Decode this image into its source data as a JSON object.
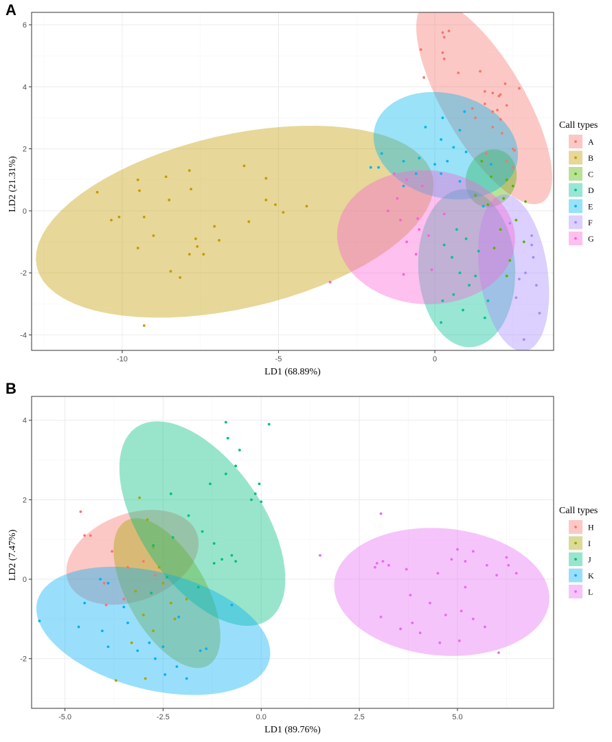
{
  "chart_data": [
    {
      "type": "scatter",
      "panel": "A",
      "title": "",
      "xlabel": "LD1 (68.89%)",
      "ylabel": "LD2 (21.31%)",
      "xlim": [
        -12.9,
        3.8
      ],
      "ylim": [
        -4.5,
        6.4
      ],
      "xticks": [
        -10,
        -5,
        0
      ],
      "yticks": [
        -4,
        -2,
        0,
        2,
        4,
        6
      ],
      "grid": true,
      "legend_title": "Call types",
      "legend_position": "right",
      "series": [
        {
          "name": "A",
          "color": "#F8766D",
          "ellipse": {
            "cx": 1.58,
            "cy": 3.5,
            "rx": 3.72,
            "ry": 1.3,
            "angle": -60
          },
          "points": [
            [
              0.25,
              5.75
            ],
            [
              0.45,
              5.8
            ],
            [
              0.3,
              5.6
            ],
            [
              -0.45,
              5.2
            ],
            [
              0.25,
              5.1
            ],
            [
              0.3,
              4.9
            ],
            [
              0.75,
              4.45
            ],
            [
              1.45,
              4.5
            ],
            [
              -0.35,
              4.3
            ],
            [
              2.25,
              4.1
            ],
            [
              2.7,
              3.95
            ],
            [
              1.6,
              3.85
            ],
            [
              1.85,
              3.8
            ],
            [
              2.05,
              3.7
            ],
            [
              2.1,
              3.75
            ],
            [
              1.6,
              3.45
            ],
            [
              2.3,
              3.4
            ],
            [
              1.2,
              3.3
            ],
            [
              1.85,
              3.2
            ],
            [
              2.0,
              3.25
            ],
            [
              1.3,
              3.0
            ],
            [
              2.1,
              2.95
            ],
            [
              1.85,
              2.7
            ],
            [
              2.15,
              2.5
            ],
            [
              2.5,
              2.0
            ],
            [
              2.55,
              1.95
            ],
            [
              1.65,
              1.85
            ],
            [
              2.3,
              1.6
            ],
            [
              2.5,
              1.4
            ]
          ]
        },
        {
          "name": "B",
          "color": "#C49A00",
          "ellipse": {
            "cx": -6.4,
            "cy": -0.35,
            "rx": 6.5,
            "ry": 2.8,
            "angle": 13
          },
          "points": [
            [
              -10.8,
              0.6
            ],
            [
              -10.35,
              -0.3
            ],
            [
              -10.1,
              -0.2
            ],
            [
              -9.5,
              1.0
            ],
            [
              -9.45,
              0.65
            ],
            [
              -9.3,
              -0.2
            ],
            [
              -9.0,
              -0.8
            ],
            [
              -8.6,
              1.1
            ],
            [
              -8.5,
              0.35
            ],
            [
              -8.45,
              -1.95
            ],
            [
              -8.15,
              -2.15
            ],
            [
              -7.85,
              1.3
            ],
            [
              -7.8,
              0.7
            ],
            [
              -7.65,
              -0.9
            ],
            [
              -7.6,
              -1.15
            ],
            [
              -7.4,
              -1.4
            ],
            [
              -7.05,
              -0.5
            ],
            [
              -6.9,
              -0.95
            ],
            [
              -6.1,
              1.45
            ],
            [
              -5.95,
              -0.35
            ],
            [
              -5.4,
              1.05
            ],
            [
              -5.4,
              0.35
            ],
            [
              -5.1,
              0.2
            ],
            [
              -4.85,
              -0.05
            ],
            [
              -4.1,
              0.15
            ],
            [
              -9.5,
              -1.2
            ],
            [
              -7.85,
              -1.4
            ],
            [
              -9.3,
              -3.7
            ]
          ]
        },
        {
          "name": "C",
          "color": "#53B400",
          "ellipse": {
            "cx": 1.8,
            "cy": 1.05,
            "rx": 0.8,
            "ry": 0.95,
            "angle": -20
          },
          "points": [
            [
              1.5,
              1.6
            ],
            [
              1.8,
              1.1
            ],
            [
              2.3,
              1.0
            ],
            [
              2.5,
              0.8
            ],
            [
              2.9,
              0.3
            ],
            [
              1.3,
              0.5
            ],
            [
              2.2,
              0.4
            ],
            [
              1.7,
              0.2
            ],
            [
              2.6,
              -0.3
            ],
            [
              2.1,
              -0.6
            ],
            [
              1.9,
              -1.2
            ],
            [
              2.4,
              -1.6
            ],
            [
              2.85,
              -1.0
            ],
            [
              2.3,
              -2.1
            ]
          ]
        },
        {
          "name": "D",
          "color": "#00C094",
          "ellipse": {
            "cx": 1.02,
            "cy": -1.85,
            "rx": 1.55,
            "ry": 2.55,
            "angle": 3
          },
          "points": [
            [
              0.55,
              -1.5
            ],
            [
              0.8,
              -2.0
            ],
            [
              1.1,
              -2.4
            ],
            [
              1.4,
              -1.3
            ],
            [
              0.3,
              -1.1
            ],
            [
              1.7,
              -2.9
            ],
            [
              0.9,
              -3.2
            ],
            [
              0.6,
              -2.7
            ],
            [
              0.25,
              -2.9
            ],
            [
              1.6,
              -3.45
            ],
            [
              0.2,
              -3.6
            ],
            [
              1.3,
              -2.1
            ],
            [
              0.7,
              -0.6
            ],
            [
              1.0,
              -0.9
            ]
          ]
        },
        {
          "name": "E",
          "color": "#00B6EB",
          "ellipse": {
            "cx": 0.35,
            "cy": 2.1,
            "rx": 2.35,
            "ry": 1.68,
            "angle": -15
          },
          "points": [
            [
              -1.7,
              1.85
            ],
            [
              -1.8,
              1.4
            ],
            [
              -1.0,
              1.6
            ],
            [
              -0.5,
              1.7
            ],
            [
              -0.3,
              2.7
            ],
            [
              0.2,
              2.3
            ],
            [
              0.6,
              2.05
            ],
            [
              0.4,
              1.6
            ],
            [
              0.0,
              1.5
            ],
            [
              -0.6,
              1.2
            ],
            [
              0.2,
              1.2
            ],
            [
              0.8,
              2.6
            ],
            [
              1.0,
              1.9
            ],
            [
              -1.0,
              0.8
            ],
            [
              0.8,
              0.95
            ],
            [
              -2.05,
              1.4
            ],
            [
              1.8,
              1.5
            ],
            [
              0.95,
              3.2
            ],
            [
              0.25,
              3.0
            ],
            [
              1.55,
              0.15
            ]
          ]
        },
        {
          "name": "F",
          "color": "#A58AFF",
          "ellipse": {
            "cx": 2.52,
            "cy": -2.0,
            "rx": 1.09,
            "ry": 2.55,
            "angle": 8
          },
          "points": [
            [
              3.1,
              -0.8
            ],
            [
              3.15,
              -1.5
            ],
            [
              2.9,
              -2.0
            ],
            [
              3.25,
              -2.4
            ],
            [
              2.6,
              -2.8
            ],
            [
              2.7,
              -2.2
            ],
            [
              3.35,
              -3.3
            ],
            [
              2.85,
              -4.15
            ],
            [
              3.1,
              -1.1
            ],
            [
              2.4,
              -0.4
            ]
          ]
        },
        {
          "name": "G",
          "color": "#FB61D7",
          "ellipse": {
            "cx": -0.28,
            "cy": -0.85,
            "rx": 2.85,
            "ry": 2.16,
            "angle": -3
          },
          "points": [
            [
              -1.3,
              1.2
            ],
            [
              -0.9,
              1.0
            ],
            [
              -0.4,
              0.8
            ],
            [
              -1.2,
              0.4
            ],
            [
              -1.5,
              0.0
            ],
            [
              -1.1,
              -0.3
            ],
            [
              -0.5,
              -0.6
            ],
            [
              -0.2,
              -0.8
            ],
            [
              0.3,
              -0.1
            ],
            [
              -0.9,
              -1.0
            ],
            [
              -0.6,
              -1.4
            ],
            [
              -0.1,
              -1.9
            ],
            [
              -1.0,
              -2.05
            ],
            [
              -0.55,
              -0.25
            ],
            [
              -3.35,
              -2.3
            ]
          ]
        }
      ]
    },
    {
      "type": "scatter",
      "panel": "B",
      "title": "",
      "xlabel": "LD1 (89.76%)",
      "ylabel": "LD2 (7.47%)",
      "xlim": [
        -5.85,
        7.45
      ],
      "ylim": [
        -3.25,
        4.6
      ],
      "xticks": [
        -5.0,
        -2.5,
        0.0,
        2.5,
        5.0
      ],
      "yticks": [
        -2,
        0,
        2,
        4
      ],
      "grid": true,
      "legend_title": "Call types",
      "legend_position": "right",
      "series": [
        {
          "name": "H",
          "color": "#F8766D",
          "ellipse": {
            "cx": -3.28,
            "cy": 0.55,
            "rx": 1.75,
            "ry": 1.1,
            "angle": 20
          },
          "points": [
            [
              -4.6,
              1.7
            ],
            [
              -4.5,
              1.1
            ],
            [
              -4.35,
              1.1
            ],
            [
              -3.8,
              0.7
            ],
            [
              -3.4,
              0.3
            ],
            [
              -3.0,
              0.45
            ],
            [
              -4.0,
              -0.1
            ],
            [
              -3.5,
              -0.5
            ],
            [
              -2.7,
              0.1
            ],
            [
              -3.95,
              -0.65
            ]
          ]
        },
        {
          "name": "I",
          "color": "#A3A500",
          "ellipse": {
            "cx": -2.4,
            "cy": -0.35,
            "rx": 2.1,
            "ry": 1.0,
            "angle": -60
          },
          "points": [
            [
              -3.1,
              2.05
            ],
            [
              -2.9,
              1.5
            ],
            [
              -2.75,
              0.8
            ],
            [
              -2.6,
              0.3
            ],
            [
              -3.2,
              -0.3
            ],
            [
              -2.5,
              -0.1
            ],
            [
              -2.3,
              -0.6
            ],
            [
              -3.0,
              -0.9
            ],
            [
              -2.2,
              -1.0
            ],
            [
              -2.75,
              -1.3
            ],
            [
              -3.3,
              -1.6
            ],
            [
              -3.7,
              -2.55
            ],
            [
              -2.95,
              -2.5
            ],
            [
              -1.9,
              -0.5
            ]
          ]
        },
        {
          "name": "J",
          "color": "#00BF7D",
          "ellipse": {
            "cx": -1.5,
            "cy": 1.4,
            "rx": 2.95,
            "ry": 1.55,
            "angle": -55
          },
          "points": [
            [
              -0.9,
              3.95
            ],
            [
              0.2,
              3.9
            ],
            [
              -0.85,
              3.55
            ],
            [
              -0.55,
              3.25
            ],
            [
              -0.65,
              2.85
            ],
            [
              -0.9,
              2.65
            ],
            [
              -1.3,
              2.4
            ],
            [
              -0.05,
              2.4
            ],
            [
              -0.15,
              2.15
            ],
            [
              -0.25,
              2.0
            ],
            [
              0.0,
              1.95
            ],
            [
              -2.3,
              2.15
            ],
            [
              -1.85,
              1.6
            ],
            [
              -1.5,
              1.2
            ],
            [
              -2.25,
              1.05
            ],
            [
              -2.75,
              0.85
            ],
            [
              -1.2,
              0.9
            ],
            [
              -0.75,
              0.6
            ],
            [
              -1.2,
              0.4
            ],
            [
              -1.0,
              0.5
            ],
            [
              -0.65,
              0.45
            ],
            [
              -2.4,
              0.05
            ],
            [
              -1.6,
              -0.2
            ],
            [
              -2.8,
              -0.35
            ]
          ]
        },
        {
          "name": "K",
          "color": "#00B0F6",
          "ellipse": {
            "cx": -2.75,
            "cy": -1.3,
            "rx": 3.05,
            "ry": 1.48,
            "angle": -14
          },
          "points": [
            [
              -5.65,
              -1.05
            ],
            [
              -4.65,
              -1.2
            ],
            [
              -4.5,
              -0.6
            ],
            [
              -4.1,
              0.0
            ],
            [
              -4.05,
              -1.3
            ],
            [
              -3.9,
              -1.7
            ],
            [
              -3.5,
              -0.7
            ],
            [
              -3.4,
              -1.1
            ],
            [
              -3.15,
              -1.8
            ],
            [
              -2.85,
              -1.6
            ],
            [
              -2.5,
              -1.7
            ],
            [
              -2.45,
              -2.4
            ],
            [
              -2.15,
              -2.2
            ],
            [
              -1.9,
              -2.5
            ],
            [
              -1.55,
              -1.8
            ],
            [
              -1.4,
              -1.75
            ],
            [
              -0.75,
              -0.65
            ],
            [
              -2.7,
              -2.0
            ],
            [
              -3.9,
              -0.1
            ],
            [
              -2.1,
              -0.95
            ]
          ]
        },
        {
          "name": "L",
          "color": "#E76BF3",
          "ellipse": {
            "cx": 4.6,
            "cy": -0.32,
            "rx": 2.75,
            "ry": 1.6,
            "angle": -5
          },
          "points": [
            [
              3.05,
              1.65
            ],
            [
              1.5,
              0.6
            ],
            [
              2.9,
              0.3
            ],
            [
              2.95,
              0.4
            ],
            [
              3.1,
              0.45
            ],
            [
              3.25,
              0.35
            ],
            [
              3.7,
              0.25
            ],
            [
              4.5,
              0.15
            ],
            [
              4.85,
              0.5
            ],
            [
              5.0,
              0.75
            ],
            [
              5.2,
              0.45
            ],
            [
              5.4,
              0.7
            ],
            [
              5.75,
              0.35
            ],
            [
              6.0,
              0.1
            ],
            [
              6.25,
              0.55
            ],
            [
              6.3,
              0.35
            ],
            [
              6.5,
              0.15
            ],
            [
              3.8,
              -0.4
            ],
            [
              4.3,
              -0.6
            ],
            [
              4.7,
              -0.9
            ],
            [
              5.1,
              -0.8
            ],
            [
              5.4,
              -1.0
            ],
            [
              5.7,
              -1.2
            ],
            [
              3.85,
              -1.1
            ],
            [
              3.55,
              -1.25
            ],
            [
              4.05,
              -1.35
            ],
            [
              4.55,
              -1.6
            ],
            [
              5.05,
              -1.55
            ],
            [
              6.05,
              -1.85
            ],
            [
              3.05,
              -0.95
            ],
            [
              5.2,
              -0.2
            ]
          ]
        }
      ]
    }
  ]
}
